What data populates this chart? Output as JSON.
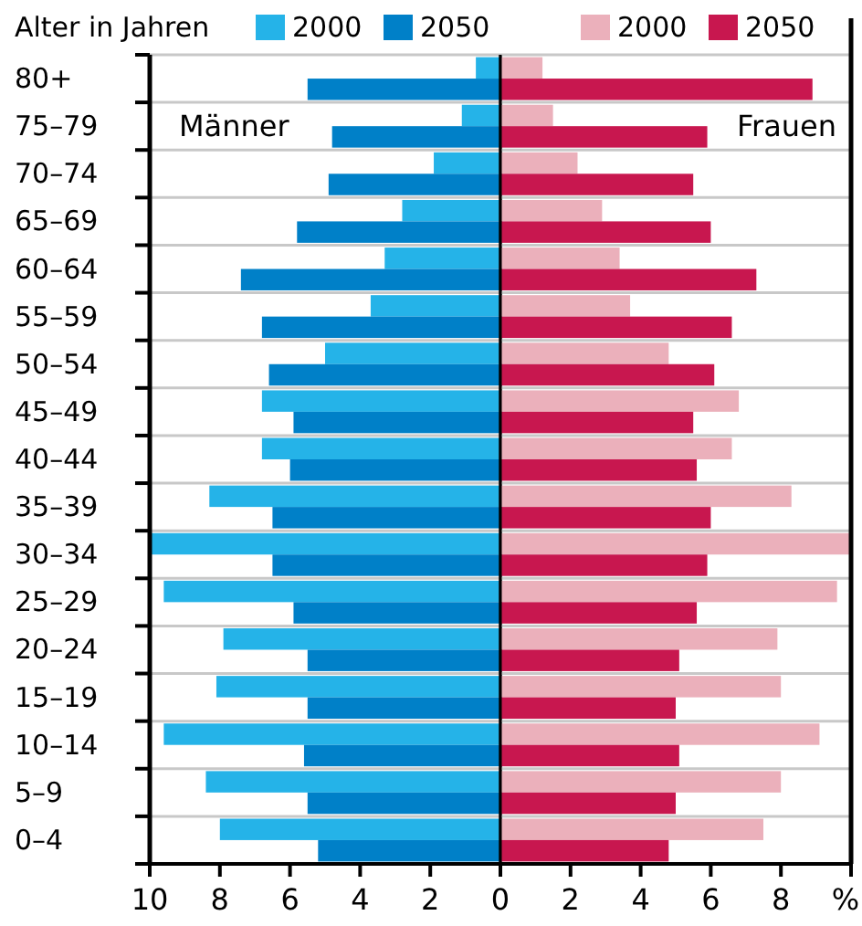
{
  "chart_data": [
    {
      "type": "bar",
      "orientation": "horizontal",
      "ylabel": "Alter in Jahren",
      "categories": [
        "80+",
        "75–79",
        "70–74",
        "65–69",
        "60–64",
        "55–59",
        "50–54",
        "45–49",
        "40–44",
        "35–39",
        "30–34",
        "25–29",
        "20–24",
        "15–19",
        "10–14",
        "5–9",
        "0–4"
      ],
      "series": [
        {
          "name": "2000",
          "color": "#25b3e8",
          "values": [
            0.7,
            1.1,
            1.9,
            2.8,
            3.3,
            3.7,
            5.0,
            6.8,
            6.8,
            8.3,
            10.0,
            9.6,
            7.9,
            8.1,
            9.6,
            8.4,
            8.0
          ]
        },
        {
          "name": "2050",
          "color": "#0080c8",
          "values": [
            5.5,
            4.8,
            4.9,
            5.8,
            7.4,
            6.8,
            6.6,
            5.9,
            6.0,
            6.5,
            6.5,
            5.9,
            5.5,
            5.5,
            5.6,
            5.5,
            5.2
          ]
        }
      ],
      "xlim": [
        10,
        0
      ],
      "xticks": [
        10,
        8,
        6,
        4,
        2,
        0
      ],
      "annotations": [
        "Männer"
      ],
      "grid": "y",
      "legend": "top"
    },
    {
      "type": "bar",
      "orientation": "horizontal",
      "series": [
        {
          "name": "2000",
          "color": "#ebb0bb",
          "values": [
            1.2,
            1.5,
            2.2,
            2.9,
            3.4,
            3.7,
            4.8,
            6.8,
            6.6,
            8.3,
            10.0,
            9.6,
            7.9,
            8.0,
            9.1,
            8.0,
            7.5
          ]
        },
        {
          "name": "2050",
          "color": "#c8174f",
          "values": [
            8.9,
            5.9,
            5.5,
            6.0,
            7.3,
            6.6,
            6.1,
            5.5,
            5.6,
            6.0,
            5.9,
            5.6,
            5.1,
            5.0,
            5.1,
            5.0,
            4.8
          ]
        }
      ],
      "xlim": [
        0,
        10
      ],
      "xticks": [
        {
          "value": 0,
          "label": null
        },
        2,
        4,
        6,
        8,
        {
          "value": 10,
          "label": "%"
        }
      ],
      "annotations": [
        "Frauen"
      ],
      "tick_labels": "x",
      "grid": "y",
      "legend": "top"
    }
  ]
}
